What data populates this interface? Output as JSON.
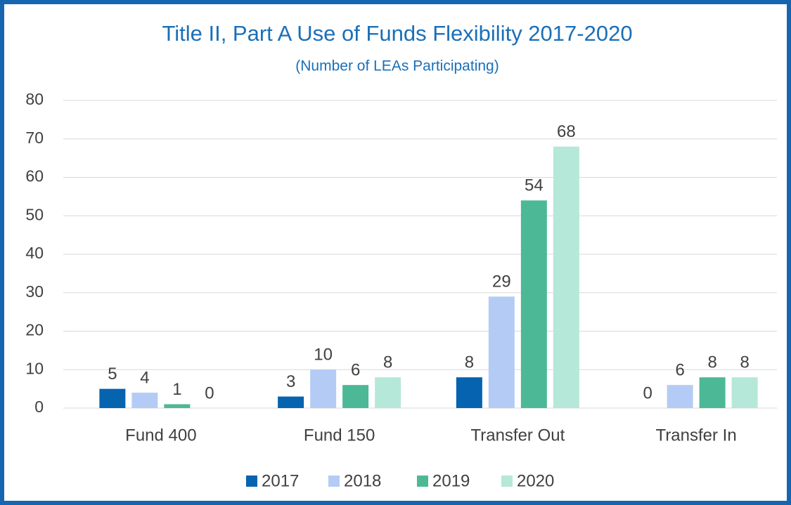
{
  "chart_data": {
    "type": "bar",
    "title": "Title II, Part A Use of Funds Flexibility 2017-2020",
    "subtitle": "(Number of LEAs Participating)",
    "categories": [
      "Fund 400",
      "Fund 150",
      "Transfer Out",
      "Transfer In"
    ],
    "series": [
      {
        "name": "2017",
        "color": "#0563b0",
        "values": [
          5,
          3,
          8,
          0
        ]
      },
      {
        "name": "2018",
        "color": "#b4ccf5",
        "values": [
          4,
          10,
          29,
          6
        ]
      },
      {
        "name": "2019",
        "color": "#4db896",
        "values": [
          1,
          6,
          54,
          8
        ]
      },
      {
        "name": "2020",
        "color": "#b5e8d8",
        "values": [
          0,
          8,
          68,
          8
        ]
      }
    ],
    "ylim": [
      0,
      80
    ],
    "yticks": [
      0,
      10,
      20,
      30,
      40,
      50,
      60,
      70,
      80
    ],
    "grid": true,
    "legend": "bottom"
  }
}
